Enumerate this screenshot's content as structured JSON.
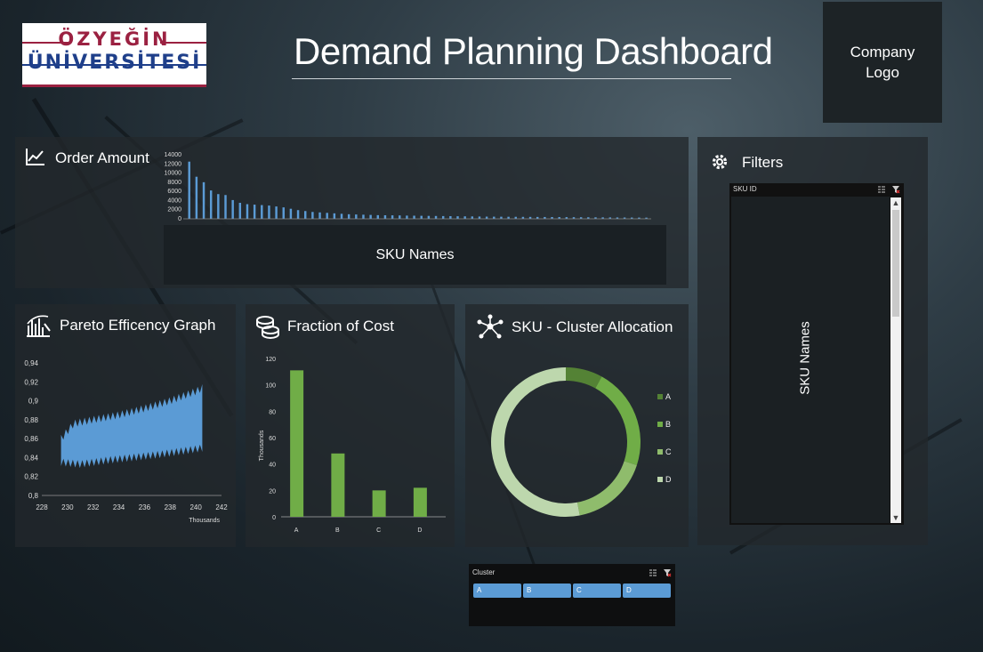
{
  "header": {
    "logo_line1": "ÖZYEĞİN",
    "logo_line2": "ÜNİVERSİTESİ",
    "title": "Demand Planning Dashboard",
    "company_logo": "Company Logo"
  },
  "order_panel": {
    "title": "Order Amount",
    "icon": "line-chart-icon",
    "sku_names_label": "SKU Names",
    "chart_data": {
      "type": "bar",
      "title": "Order Amount",
      "xlabel": "SKU Names",
      "ylim": [
        0,
        14000
      ],
      "yticks": [
        "14000",
        "12000",
        "10000",
        "8000",
        "6000",
        "4000",
        "2000",
        "0"
      ],
      "values": [
        12500,
        9200,
        8000,
        6200,
        5400,
        5200,
        4100,
        3500,
        3200,
        3100,
        3000,
        2900,
        2700,
        2500,
        2200,
        1900,
        1700,
        1500,
        1400,
        1300,
        1200,
        1100,
        1000,
        950,
        900,
        850,
        800,
        780,
        760,
        740,
        700,
        680,
        660,
        640,
        620,
        600,
        580,
        560,
        540,
        520,
        500,
        480,
        470,
        460,
        450,
        440,
        430,
        420,
        410,
        400,
        390,
        380,
        370,
        360,
        350,
        340,
        330,
        320,
        310,
        300,
        290,
        280,
        270,
        260
      ]
    }
  },
  "filters_panel": {
    "title": "Filters",
    "icon": "gear-icon",
    "slicer_header": "SKU ID",
    "slicer_body": "SKU Names"
  },
  "pareto_panel": {
    "title": "Pareto Efficency Graph",
    "icon": "pareto-icon",
    "chart_data": {
      "type": "area",
      "xlim": [
        228,
        242
      ],
      "ylim": [
        0.8,
        0.94
      ],
      "xticks": [
        "228",
        "230",
        "232",
        "234",
        "236",
        "238",
        "240",
        "242"
      ],
      "yticks": [
        "0,94",
        "0,92",
        "0,9",
        "0,88",
        "0,86",
        "0,84",
        "0,82",
        "0,8"
      ],
      "xunit": "Thousands",
      "lower": [
        [
          229.5,
          0.835
        ],
        [
          231,
          0.833
        ],
        [
          233,
          0.837
        ],
        [
          235,
          0.84
        ],
        [
          237,
          0.843
        ],
        [
          238.5,
          0.846
        ],
        [
          240.5,
          0.85
        ]
      ],
      "upper": [
        [
          229.5,
          0.86
        ],
        [
          230.5,
          0.876
        ],
        [
          232,
          0.88
        ],
        [
          234,
          0.885
        ],
        [
          236,
          0.892
        ],
        [
          238,
          0.9
        ],
        [
          240,
          0.91
        ],
        [
          241.4,
          0.92
        ]
      ]
    }
  },
  "cost_panel": {
    "title": "Fraction of Cost",
    "icon": "coins-icon",
    "chart_data": {
      "type": "bar",
      "categories": [
        "A",
        "B",
        "C",
        "D"
      ],
      "values": [
        111,
        48,
        20,
        22
      ],
      "ylabel": "Thousands",
      "ylim": [
        0,
        120
      ],
      "yticks": [
        "0",
        "20",
        "40",
        "60",
        "80",
        "100",
        "120"
      ],
      "color": "#70ad47"
    }
  },
  "cluster_panel": {
    "title": "SKU - Cluster Allocation",
    "icon": "network-icon",
    "chart_data": {
      "type": "pie",
      "donut": true,
      "categories": [
        "A",
        "B",
        "C",
        "D"
      ],
      "values": [
        8,
        22,
        17,
        53
      ],
      "colors": [
        "#548235",
        "#70ad47",
        "#8fbc6c",
        "#bdd7ad"
      ],
      "legend_position": "right"
    }
  },
  "cluster_slicer": {
    "header": "Cluster",
    "items": [
      "A",
      "B",
      "C",
      "D"
    ],
    "accent": "#5b9bd5"
  }
}
